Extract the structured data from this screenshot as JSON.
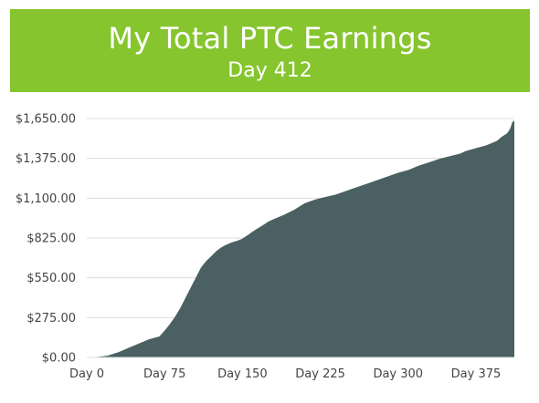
{
  "header": {
    "title": "My Total PTC Earnings",
    "subtitle": "Day 412"
  },
  "colors": {
    "banner": "#86c52e",
    "area": "#4a6062",
    "grid": "#dcdcdc"
  },
  "chart_data": {
    "type": "area",
    "title": "My Total PTC Earnings",
    "subtitle": "Day 412",
    "xlabel": "",
    "ylabel": "",
    "xlim": [
      0,
      412
    ],
    "ylim": [
      0,
      1650
    ],
    "x_ticks": [
      {
        "value": 0,
        "label": "Day 0"
      },
      {
        "value": 75,
        "label": "Day 75"
      },
      {
        "value": 150,
        "label": "Day 150"
      },
      {
        "value": 225,
        "label": "Day 225"
      },
      {
        "value": 300,
        "label": "Day 300"
      },
      {
        "value": 375,
        "label": "Day 375"
      }
    ],
    "y_ticks": [
      {
        "value": 0,
        "label": "$0.00"
      },
      {
        "value": 275,
        "label": "$275.00"
      },
      {
        "value": 550,
        "label": "$550.00"
      },
      {
        "value": 825,
        "label": "$825.00"
      },
      {
        "value": 1100,
        "label": "$1,100.00"
      },
      {
        "value": 1375,
        "label": "$1,375.00"
      },
      {
        "value": 1650,
        "label": "$1,650.00"
      }
    ],
    "grid": true,
    "legend": "none",
    "series": [
      {
        "values": [
          [
            0,
            0
          ],
          [
            10,
            3
          ],
          [
            20,
            12
          ],
          [
            30,
            35
          ],
          [
            40,
            65
          ],
          [
            50,
            95
          ],
          [
            60,
            125
          ],
          [
            70,
            145
          ],
          [
            75,
            185
          ],
          [
            80,
            230
          ],
          [
            85,
            280
          ],
          [
            90,
            340
          ],
          [
            95,
            410
          ],
          [
            100,
            480
          ],
          [
            105,
            550
          ],
          [
            110,
            620
          ],
          [
            115,
            665
          ],
          [
            120,
            700
          ],
          [
            125,
            735
          ],
          [
            130,
            762
          ],
          [
            135,
            780
          ],
          [
            140,
            795
          ],
          [
            145,
            805
          ],
          [
            150,
            820
          ],
          [
            155,
            845
          ],
          [
            160,
            870
          ],
          [
            165,
            893
          ],
          [
            170,
            915
          ],
          [
            175,
            938
          ],
          [
            180,
            955
          ],
          [
            190,
            985
          ],
          [
            200,
            1020
          ],
          [
            210,
            1065
          ],
          [
            220,
            1090
          ],
          [
            225,
            1100
          ],
          [
            230,
            1108
          ],
          [
            240,
            1125
          ],
          [
            250,
            1150
          ],
          [
            260,
            1175
          ],
          [
            270,
            1200
          ],
          [
            280,
            1225
          ],
          [
            290,
            1250
          ],
          [
            300,
            1275
          ],
          [
            310,
            1295
          ],
          [
            320,
            1325
          ],
          [
            330,
            1348
          ],
          [
            340,
            1372
          ],
          [
            350,
            1390
          ],
          [
            360,
            1408
          ],
          [
            365,
            1425
          ],
          [
            375,
            1445
          ],
          [
            385,
            1465
          ],
          [
            395,
            1495
          ],
          [
            400,
            1525
          ],
          [
            405,
            1548
          ],
          [
            408,
            1580
          ],
          [
            410,
            1625
          ],
          [
            412,
            1635
          ]
        ]
      }
    ]
  }
}
